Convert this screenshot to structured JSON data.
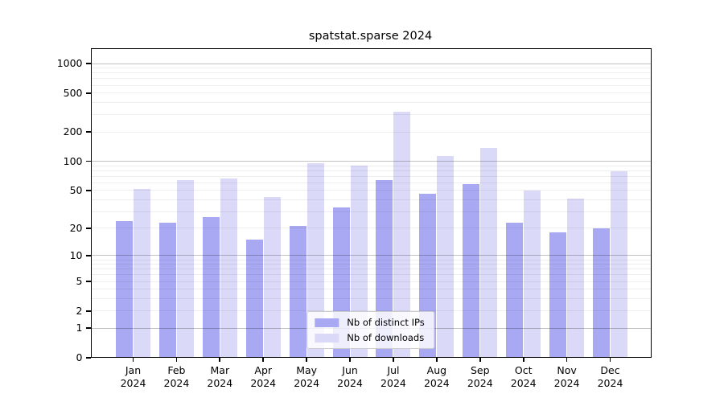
{
  "chart_data": {
    "type": "bar",
    "title": "spatstat.sparse 2024",
    "x_year": "2024",
    "categories": [
      "Jan",
      "Feb",
      "Mar",
      "Apr",
      "May",
      "Jun",
      "Jul",
      "Aug",
      "Sep",
      "Oct",
      "Nov",
      "Dec"
    ],
    "series": [
      {
        "name": "Nb of distinct IPs",
        "color": "#a9a9f3",
        "values": [
          24,
          23,
          26,
          15,
          21,
          33,
          64,
          46,
          58,
          23,
          18,
          20
        ]
      },
      {
        "name": "Nb of downloads",
        "color": "#dadaf8",
        "values": [
          52,
          64,
          67,
          43,
          96,
          90,
          320,
          113,
          136,
          50,
          41,
          79
        ]
      }
    ],
    "yscale": "log1p",
    "ylim": [
      0,
      1433
    ],
    "y_ticks": [
      0,
      1,
      2,
      5,
      10,
      20,
      50,
      100,
      200,
      500,
      1000
    ],
    "grid": true,
    "legend_position": "lower center"
  }
}
